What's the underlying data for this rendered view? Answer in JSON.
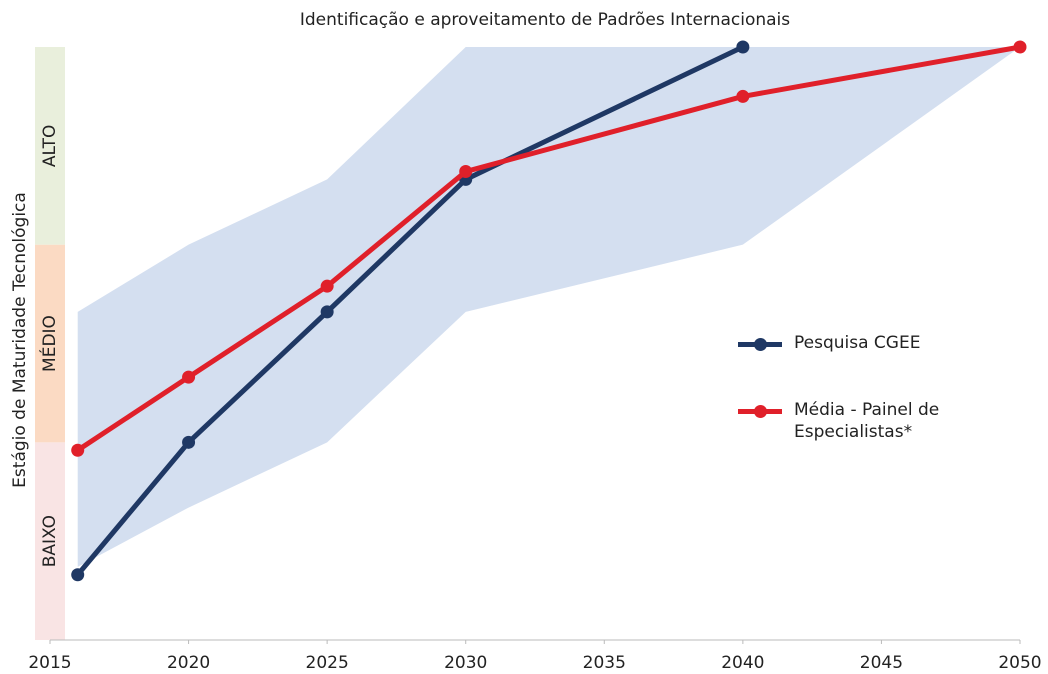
{
  "chart_data": {
    "type": "line",
    "title": "Identificação e aproveitamento de Padrões Internacionais",
    "y_label": "Estágio de Maturidade Tecnológica",
    "xlim": [
      2015,
      2050
    ],
    "xticks": [
      2015,
      2020,
      2025,
      2030,
      2035,
      2040,
      2045,
      2050
    ],
    "ylim": [
      0,
      3
    ],
    "y_bands": [
      {
        "label": "BAIXO",
        "from": 0,
        "to": 1,
        "color": "#f9e4e4"
      },
      {
        "label": "MÉDIO",
        "from": 1,
        "to": 2,
        "color": "#fbdac3"
      },
      {
        "label": "ALTO",
        "from": 2,
        "to": 3,
        "color": "#e9efdc"
      }
    ],
    "band": {
      "color": "#d4dff0",
      "x": [
        2016,
        2020,
        2025,
        2030,
        2040,
        2050
      ],
      "upper": [
        1.66,
        2.0,
        2.33,
        3.0,
        3.0,
        3.0
      ],
      "lower": [
        0.37,
        0.67,
        1.0,
        1.66,
        2.0,
        3.0
      ]
    },
    "series": [
      {
        "name": "Pesquisa CGEE",
        "color": "#1f3864",
        "x": [
          2016,
          2020,
          2025,
          2030,
          2040
        ],
        "values": [
          0.33,
          1.0,
          1.66,
          2.33,
          3.0
        ]
      },
      {
        "name": "Média - Painel de Especialistas*",
        "color": "#e0202a",
        "x": [
          2016,
          2020,
          2025,
          2030,
          2040,
          2050
        ],
        "values": [
          0.96,
          1.33,
          1.79,
          2.37,
          2.75,
          3.0
        ]
      }
    ]
  }
}
